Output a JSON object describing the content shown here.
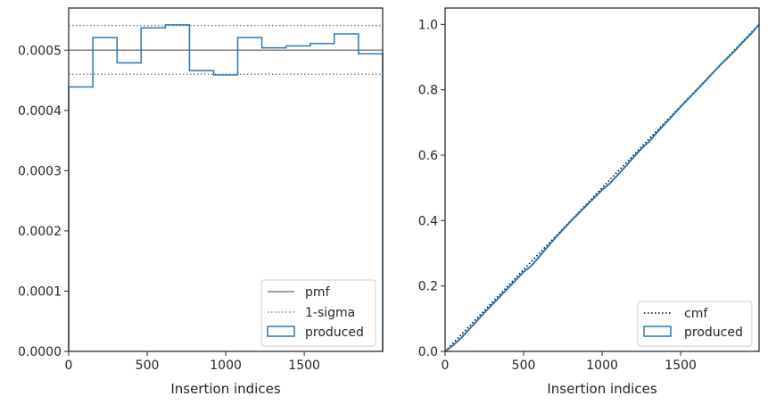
{
  "colors": {
    "produced": "#2878b5",
    "pmf": "#808080",
    "sigma": "#808080",
    "cmf": "#000000",
    "axes": "#262626"
  },
  "chart_data": [
    {
      "type": "step",
      "xlabel": "Insertion indices",
      "ylabel": "",
      "xlim": [
        0,
        1999
      ],
      "ylim": [
        0,
        0.00057
      ],
      "xticks": [
        0,
        500,
        1000,
        1500
      ],
      "xtick_labels": [
        "0",
        "500",
        "1000",
        "1500"
      ],
      "yticks": [
        0,
        0.0001,
        0.0002,
        0.0003,
        0.0004,
        0.0005
      ],
      "ytick_labels": [
        "0.0000",
        "0.0001",
        "0.0002",
        "0.0003",
        "0.0004",
        "0.0005"
      ],
      "bin_edges": [
        0,
        154,
        308,
        461,
        615,
        769,
        923,
        1076,
        1230,
        1384,
        1538,
        1691,
        1845,
        1999
      ],
      "series": [
        {
          "name": "produced",
          "kind": "histogram-step",
          "values": [
            0.000439,
            0.000521,
            0.000479,
            0.000537,
            0.000542,
            0.000466,
            0.000459,
            0.000521,
            0.000504,
            0.000507,
            0.000511,
            0.000527,
            0.000494
          ]
        },
        {
          "name": "pmf",
          "kind": "hline",
          "value": 0.0005
        },
        {
          "name": "1-sigma",
          "kind": "hline-pair",
          "values": [
            0.00046,
            0.000541
          ]
        }
      ],
      "legend": [
        "pmf",
        "1-sigma",
        "produced"
      ],
      "legend_position": "lower right",
      "grid": false
    },
    {
      "type": "line",
      "xlabel": "Insertion indices",
      "ylabel": "",
      "xlim": [
        0,
        1999
      ],
      "ylim": [
        0,
        1.05
      ],
      "xticks": [
        0,
        500,
        1000,
        1500
      ],
      "xtick_labels": [
        "0",
        "500",
        "1000",
        "1500"
      ],
      "yticks": [
        0,
        0.2,
        0.4,
        0.6,
        0.8,
        1.0
      ],
      "ytick_labels": [
        "0.0",
        "0.2",
        "0.4",
        "0.6",
        "0.8",
        "1.0"
      ],
      "series": [
        {
          "name": "cmf",
          "kind": "dotted-line",
          "x": [
            0,
            1999
          ],
          "y": [
            0,
            1.0
          ]
        },
        {
          "name": "produced",
          "kind": "cumulative-step",
          "x": [
            0,
            50,
            100,
            150,
            200,
            250,
            300,
            350,
            400,
            450,
            500,
            550,
            600,
            650,
            700,
            750,
            800,
            850,
            900,
            950,
            1000,
            1050,
            1100,
            1150,
            1200,
            1250,
            1300,
            1350,
            1400,
            1450,
            1500,
            1550,
            1600,
            1650,
            1700,
            1750,
            1800,
            1850,
            1900,
            1950,
            1999
          ],
          "y": [
            0,
            0.018,
            0.04,
            0.066,
            0.092,
            0.118,
            0.143,
            0.168,
            0.193,
            0.218,
            0.243,
            0.262,
            0.29,
            0.318,
            0.346,
            0.372,
            0.398,
            0.422,
            0.446,
            0.47,
            0.494,
            0.514,
            0.54,
            0.566,
            0.594,
            0.62,
            0.642,
            0.67,
            0.696,
            0.722,
            0.748,
            0.773,
            0.798,
            0.823,
            0.849,
            0.875,
            0.898,
            0.922,
            0.948,
            0.972,
            1.0
          ]
        }
      ],
      "legend": [
        "cmf",
        "produced"
      ],
      "legend_position": "lower right",
      "grid": false
    }
  ]
}
